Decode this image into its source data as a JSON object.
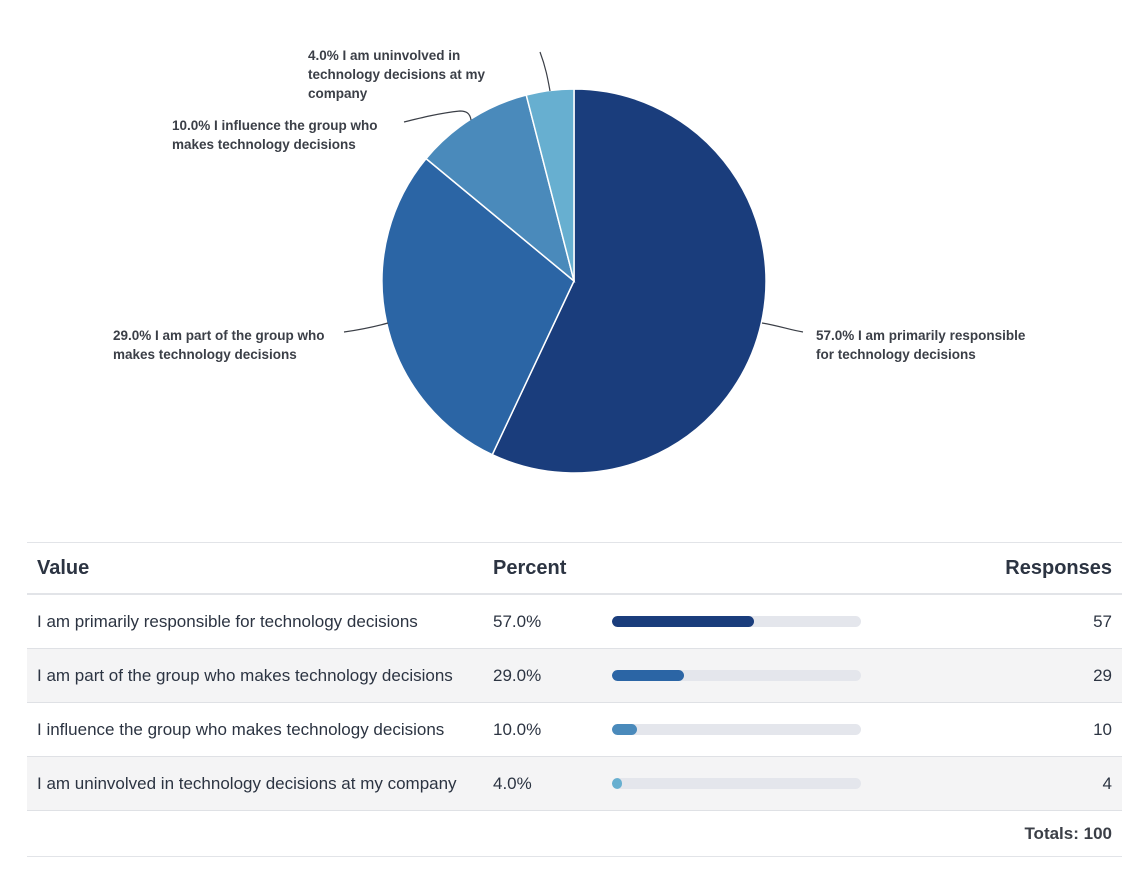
{
  "chart_data": {
    "type": "pie",
    "slices": [
      {
        "label": "I am primarily responsible for technology decisions",
        "percent": 57.0,
        "responses": 57,
        "color": "#1a3d7c",
        "callout": [
          "57.0% I am primarily responsible",
          "for technology decisions"
        ]
      },
      {
        "label": "I am part of the group who makes technology decisions",
        "percent": 29.0,
        "responses": 29,
        "color": "#2b65a5",
        "callout": [
          "29.0% I am part of the group who",
          "makes technology decisions"
        ]
      },
      {
        "label": "I influence the group who makes technology decisions",
        "percent": 10.0,
        "responses": 10,
        "color": "#4a8abb",
        "callout": [
          "10.0% I influence the group who",
          "makes technology decisions"
        ]
      },
      {
        "label": "I am uninvolved in technology decisions at my company",
        "percent": 4.0,
        "responses": 4,
        "color": "#67afd0",
        "callout": [
          "4.0% I am uninvolved in",
          "technology decisions at my",
          "company"
        ]
      }
    ]
  },
  "table": {
    "headers": {
      "value": "Value",
      "percent": "Percent",
      "responses": "Responses"
    },
    "rows": [
      {
        "value": "I am primarily responsible for technology decisions",
        "percent": "57.0%",
        "fraction": 0.57,
        "responses": "57",
        "color": "#1a3d7c"
      },
      {
        "value": "I am part of the group who makes technology decisions",
        "percent": "29.0%",
        "fraction": 0.29,
        "responses": "29",
        "color": "#2b65a5"
      },
      {
        "value": "I influence the group who makes technology decisions",
        "percent": "10.0%",
        "fraction": 0.1,
        "responses": "10",
        "color": "#4a8abb"
      },
      {
        "value": "I am uninvolved in technology decisions at my company",
        "percent": "4.0%",
        "fraction": 0.04,
        "responses": "4",
        "color": "#67afd0"
      }
    ],
    "totals": "Totals: 100"
  }
}
